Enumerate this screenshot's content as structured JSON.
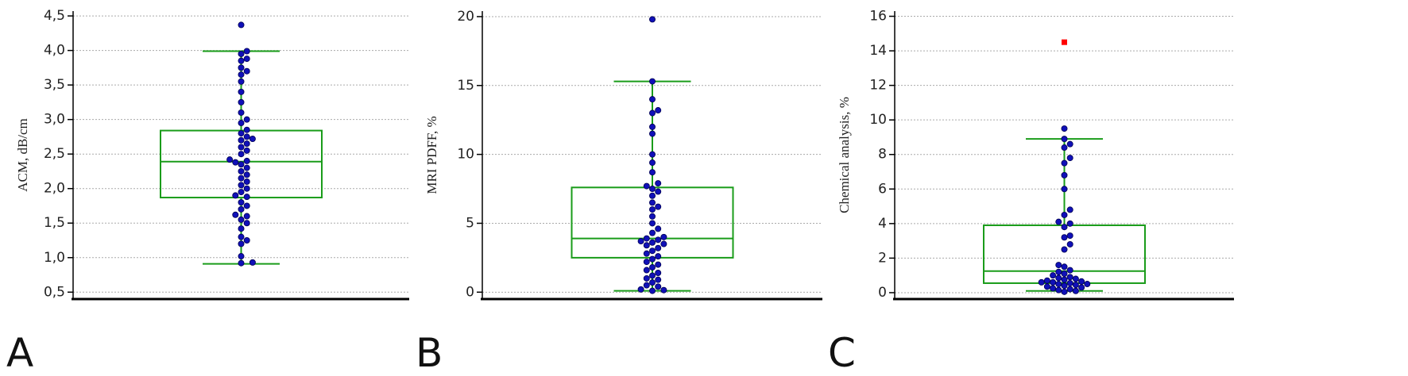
{
  "chart_data": [
    {
      "type": "box",
      "panel_label": "A",
      "ylabel": "ACM, dB/cm",
      "ylim": [
        0.4,
        4.57
      ],
      "yticks": [
        {
          "value": 0.5,
          "label": "0,5"
        },
        {
          "value": 1.0,
          "label": "1,0"
        },
        {
          "value": 1.5,
          "label": "1,5"
        },
        {
          "value": 2.0,
          "label": "2,0"
        },
        {
          "value": 2.5,
          "label": "2,5"
        },
        {
          "value": 3.0,
          "label": "3,0"
        },
        {
          "value": 3.5,
          "label": "3,5"
        },
        {
          "value": 4.0,
          "label": "4,0"
        },
        {
          "value": 4.5,
          "label": "4,5"
        }
      ],
      "grid": true,
      "box_color": "#1a9c1a",
      "point_color": "#1010b8",
      "outlier_color": "#ff0000",
      "box": {
        "whisker_low": 0.91,
        "q1": 1.87,
        "median": 2.39,
        "q3": 2.84,
        "whisker_high": 3.99
      },
      "points": [
        0.92,
        0.93,
        1.02,
        1.2,
        1.25,
        1.3,
        1.42,
        1.5,
        1.55,
        1.6,
        1.62,
        1.7,
        1.75,
        1.8,
        1.88,
        1.9,
        1.95,
        2.0,
        2.05,
        2.1,
        2.15,
        2.2,
        2.25,
        2.3,
        2.35,
        2.38,
        2.4,
        2.42,
        2.5,
        2.55,
        2.6,
        2.65,
        2.7,
        2.72,
        2.75,
        2.8,
        2.85,
        2.95,
        3.0,
        3.1,
        3.25,
        3.4,
        3.55,
        3.65,
        3.7,
        3.75,
        3.85,
        3.88,
        3.95,
        3.99,
        4.37
      ],
      "outliers": []
    },
    {
      "type": "box",
      "panel_label": "B",
      "ylabel": "MRI PDFF, %",
      "ylim": [
        -0.5,
        20.4
      ],
      "yticks": [
        0,
        5,
        10,
        15,
        20
      ],
      "grid": true,
      "box_color": "#1a9c1a",
      "point_color": "#1010b8",
      "outlier_color": "#ff0000",
      "box": {
        "whisker_low": 0.1,
        "q1": 2.5,
        "median": 3.9,
        "q3": 7.6,
        "whisker_high": 15.3
      },
      "points": [
        0.1,
        0.15,
        0.2,
        0.4,
        0.5,
        0.7,
        0.9,
        1.0,
        1.2,
        1.4,
        1.6,
        1.8,
        2.0,
        2.2,
        2.4,
        2.6,
        2.8,
        3.0,
        3.2,
        3.4,
        3.5,
        3.6,
        3.7,
        3.8,
        3.9,
        4.0,
        4.3,
        4.6,
        5.0,
        5.5,
        6.0,
        6.2,
        6.5,
        7.0,
        7.3,
        7.5,
        7.7,
        7.9,
        8.7,
        9.4,
        10.0,
        11.5,
        12.0,
        13.0,
        13.2,
        14.0,
        15.3,
        19.8
      ],
      "outliers": []
    },
    {
      "type": "box",
      "panel_label": "C",
      "ylabel": "Chemical analysis, %",
      "ylim": [
        -0.37,
        16.3
      ],
      "yticks": [
        0,
        2,
        4,
        6,
        8,
        10,
        12,
        14,
        16
      ],
      "grid": true,
      "box_color": "#1a9c1a",
      "point_color": "#1010b8",
      "outlier_color": "#ff0000",
      "box": {
        "whisker_low": 0.1,
        "q1": 0.55,
        "median": 1.25,
        "q3": 3.9,
        "whisker_high": 8.9
      },
      "points": [
        0.05,
        0.1,
        0.15,
        0.2,
        0.25,
        0.3,
        0.35,
        0.4,
        0.45,
        0.5,
        0.5,
        0.55,
        0.6,
        0.6,
        0.65,
        0.7,
        0.75,
        0.8,
        0.85,
        0.9,
        1.0,
        1.1,
        1.2,
        1.3,
        1.5,
        1.6,
        2.5,
        2.8,
        3.2,
        3.3,
        3.8,
        4.0,
        4.1,
        4.5,
        4.8,
        6.0,
        6.8,
        7.5,
        7.8,
        8.4,
        8.6,
        8.9,
        9.5
      ],
      "outliers": [
        14.5
      ]
    }
  ]
}
